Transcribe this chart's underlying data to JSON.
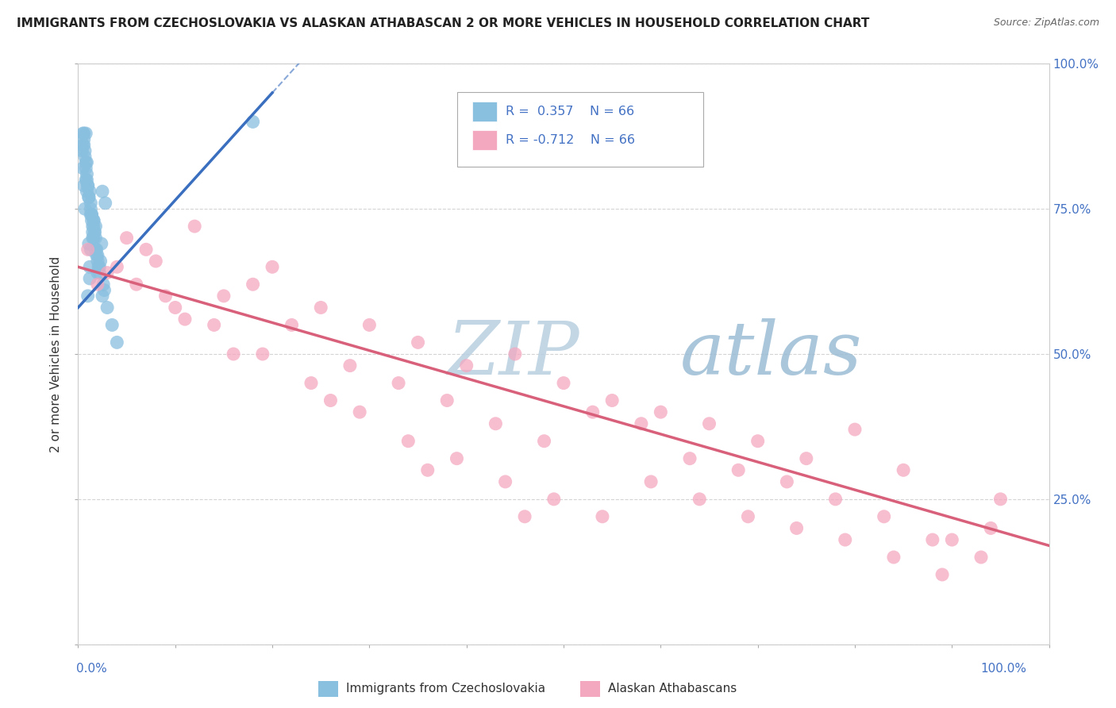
{
  "title": "IMMIGRANTS FROM CZECHOSLOVAKIA VS ALASKAN ATHABASCAN 2 OR MORE VEHICLES IN HOUSEHOLD CORRELATION CHART",
  "source": "Source: ZipAtlas.com",
  "ylabel": "2 or more Vehicles in Household",
  "legend_blue_R": "0.357",
  "legend_blue_N": "66",
  "legend_pink_R": "-0.712",
  "legend_pink_N": "66",
  "legend_label_blue": "Immigrants from Czechoslovakia",
  "legend_label_pink": "Alaskan Athabascans",
  "blue_color": "#89bfdf",
  "pink_color": "#f4a8c0",
  "blue_line_color": "#3a6fbf",
  "pink_line_color": "#d9607a",
  "watermark_zip": "ZIP",
  "watermark_atlas": "atlas",
  "watermark_color_zip": "#c5d5e8",
  "watermark_color_atlas": "#b0c8e0",
  "xlim": [
    0.0,
    100.0
  ],
  "ylim": [
    0.0,
    100.0
  ],
  "blue_scatter_x": [
    1.2,
    0.8,
    1.8,
    2.5,
    1.0,
    0.5,
    1.5,
    0.7,
    1.3,
    0.9,
    1.6,
    2.0,
    0.6,
    1.1,
    0.4,
    1.7,
    2.2,
    0.8,
    1.4,
    0.6,
    1.9,
    2.8,
    1.2,
    0.9,
    1.5,
    0.7,
    2.1,
    1.8,
    0.5,
    1.3,
    3.0,
    2.4,
    1.6,
    0.8,
    1.1,
    2.6,
    1.9,
    0.6,
    1.4,
    2.3,
    1.0,
    1.7,
    0.9,
    2.0,
    1.3,
    0.7,
    1.6,
    2.5,
    1.2,
    0.5,
    3.5,
    1.4,
    0.8,
    2.2,
    1.5,
    1.0,
    1.8,
    0.6,
    2.7,
    1.1,
    4.0,
    1.3,
    2.0,
    1.6,
    0.9,
    18.0
  ],
  "blue_scatter_y": [
    65,
    88,
    72,
    78,
    60,
    82,
    70,
    75,
    68,
    83,
    73,
    66,
    79,
    69,
    85,
    71,
    64,
    80,
    74,
    88,
    67,
    76,
    63,
    78,
    72,
    84,
    65,
    70,
    86,
    75,
    58,
    69,
    73,
    82,
    77,
    62,
    68,
    87,
    74,
    66,
    79,
    71,
    81,
    64,
    76,
    85,
    70,
    60,
    78,
    88,
    55,
    73,
    83,
    65,
    71,
    79,
    68,
    86,
    61,
    77,
    52,
    74,
    67,
    72,
    80,
    90
  ],
  "pink_scatter_x": [
    1.0,
    2.0,
    5.0,
    8.0,
    12.0,
    15.0,
    20.0,
    25.0,
    30.0,
    35.0,
    40.0,
    45.0,
    50.0,
    55.0,
    60.0,
    65.0,
    70.0,
    75.0,
    80.0,
    85.0,
    90.0,
    95.0,
    3.0,
    7.0,
    10.0,
    18.0,
    22.0,
    28.0,
    33.0,
    38.0,
    43.0,
    48.0,
    53.0,
    58.0,
    63.0,
    68.0,
    73.0,
    78.0,
    83.0,
    88.0,
    93.0,
    4.0,
    9.0,
    14.0,
    19.0,
    24.0,
    29.0,
    34.0,
    39.0,
    44.0,
    49.0,
    54.0,
    59.0,
    64.0,
    69.0,
    74.0,
    79.0,
    84.0,
    89.0,
    94.0,
    6.0,
    11.0,
    16.0,
    26.0,
    36.0,
    46.0
  ],
  "pink_scatter_y": [
    68,
    62,
    70,
    66,
    72,
    60,
    65,
    58,
    55,
    52,
    48,
    50,
    45,
    42,
    40,
    38,
    35,
    32,
    37,
    30,
    18,
    25,
    64,
    68,
    58,
    62,
    55,
    48,
    45,
    42,
    38,
    35,
    40,
    38,
    32,
    30,
    28,
    25,
    22,
    18,
    15,
    65,
    60,
    55,
    50,
    45,
    40,
    35,
    32,
    28,
    25,
    22,
    28,
    25,
    22,
    20,
    18,
    15,
    12,
    20,
    62,
    56,
    50,
    42,
    30,
    22
  ],
  "blue_line_x": [
    0.0,
    20.0
  ],
  "blue_line_y_start": 58.0,
  "blue_line_y_end": 95.0,
  "pink_line_x": [
    0.0,
    100.0
  ],
  "pink_line_y_start": 65.0,
  "pink_line_y_end": 17.0
}
